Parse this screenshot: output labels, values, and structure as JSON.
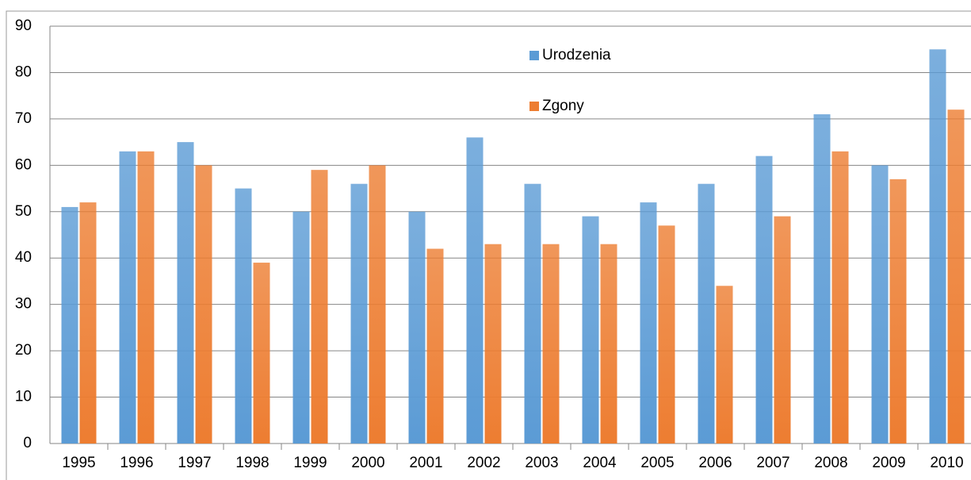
{
  "chart_data": {
    "type": "bar",
    "categories": [
      "1995",
      "1996",
      "1997",
      "1998",
      "1999",
      "2000",
      "2001",
      "2002",
      "2003",
      "2004",
      "2005",
      "2006",
      "2007",
      "2008",
      "2009",
      "2010"
    ],
    "series": [
      {
        "name": "Urodzenia",
        "color": "#5b9bd5",
        "values": [
          51,
          63,
          65,
          55,
          50,
          56,
          50,
          66,
          56,
          49,
          52,
          56,
          62,
          71,
          60,
          85
        ]
      },
      {
        "name": "Zgony",
        "color": "#ed7d31",
        "values": [
          52,
          63,
          60,
          39,
          59,
          60,
          42,
          43,
          43,
          43,
          47,
          34,
          49,
          63,
          57,
          72
        ]
      }
    ],
    "ylim": [
      0,
      90
    ],
    "yticks": [
      0,
      10,
      20,
      30,
      40,
      50,
      60,
      70,
      80,
      90
    ],
    "grid": true
  }
}
